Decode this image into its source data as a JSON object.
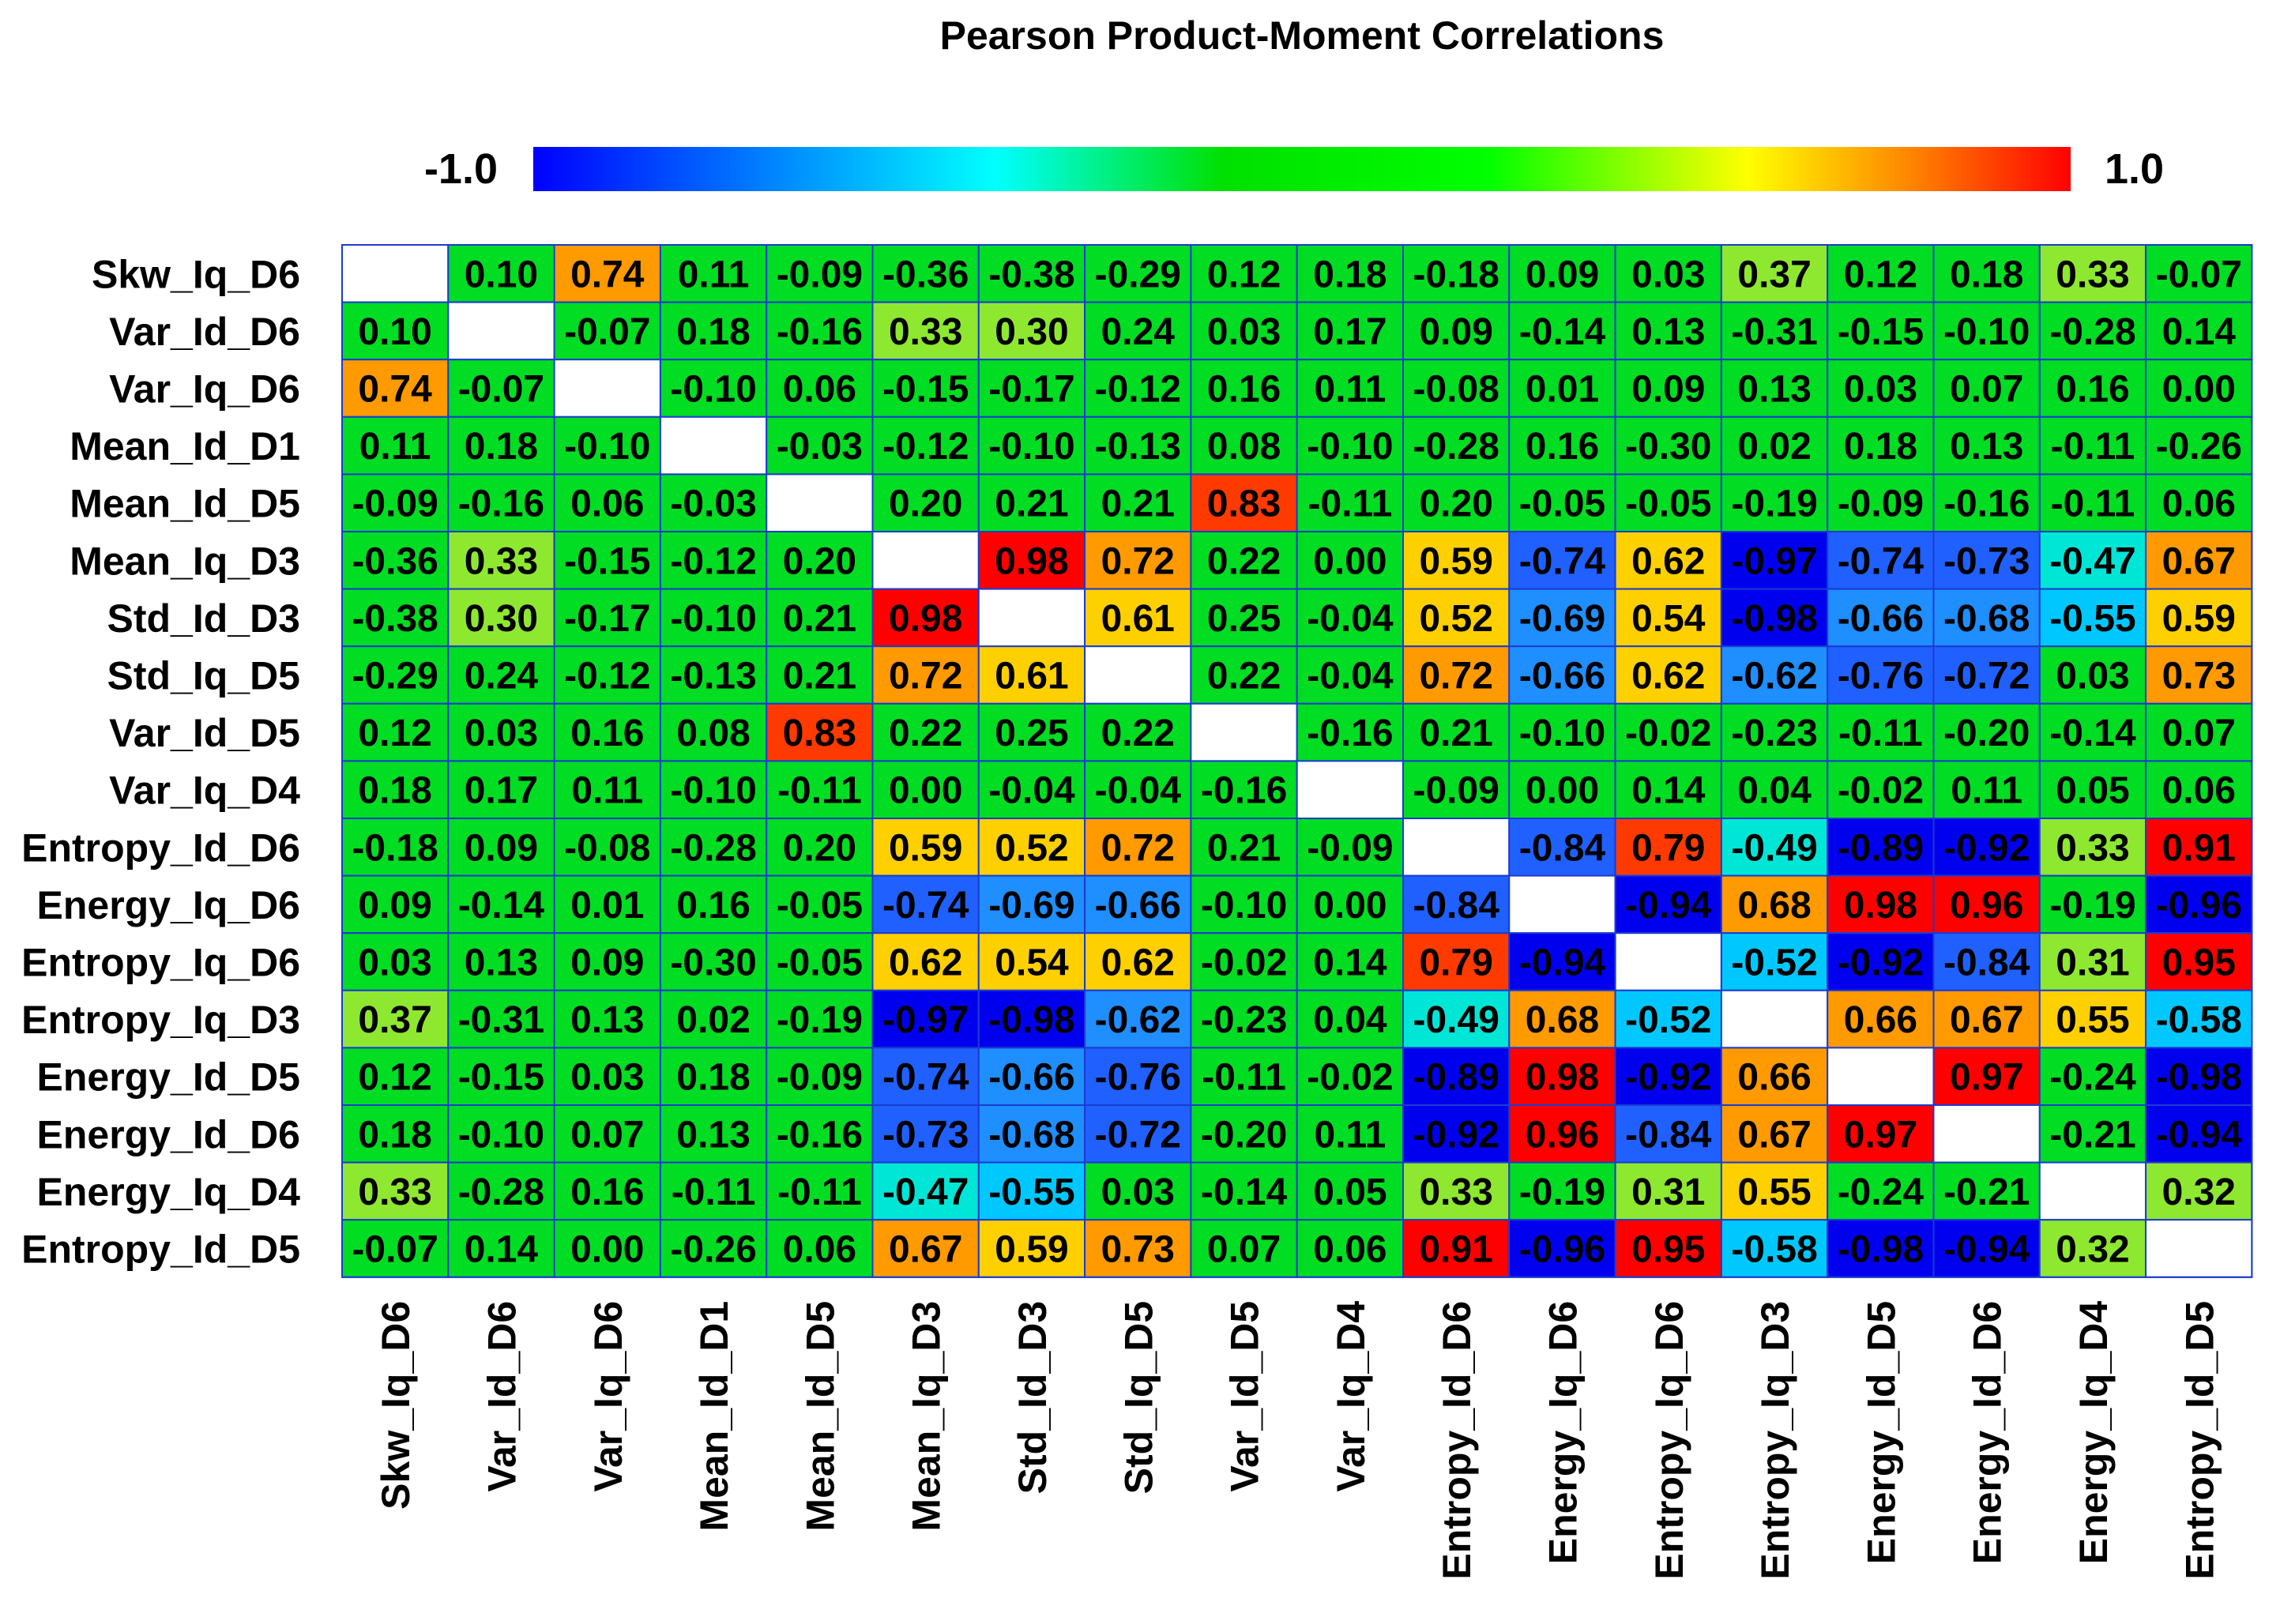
{
  "chart_data": {
    "type": "heatmap",
    "title": "Pearson Product-Moment Correlations",
    "colorbar": {
      "min_label": "-1.0",
      "max_label": "1.0",
      "range": [
        -1,
        1
      ],
      "colors": [
        "#0000ff",
        "#00ffff",
        "#00e000",
        "#00ff00",
        "#ffff00",
        "#ff8000",
        "#ff0000"
      ]
    },
    "rows": [
      "Skw_Iq_D6",
      "Var_Id_D6",
      "Var_Iq_D6",
      "Mean_Id_D1",
      "Mean_Id_D5",
      "Mean_Iq_D3",
      "Std_Id_D3",
      "Std_Iq_D5",
      "Var_Id_D5",
      "Var_Iq_D4",
      "Entropy_Id_D6",
      "Energy_Iq_D6",
      "Entropy_Iq_D6",
      "Entropy_Iq_D3",
      "Energy_Id_D5",
      "Energy_Id_D6",
      "Energy_Iq_D4",
      "Entropy_Id_D5"
    ],
    "columns": [
      "Skw_Iq_D6",
      "Var_Id_D6",
      "Var_Iq_D6",
      "Mean_Id_D1",
      "Mean_Id_D5",
      "Mean_Iq_D3",
      "Std_Id_D3",
      "Std_Iq_D5",
      "Var_Id_D5",
      "Var_Iq_D4",
      "Entropy_Id_D6",
      "Energy_Iq_D6",
      "Entropy_Iq_D6",
      "Entropy_Iq_D3",
      "Energy_Id_D5",
      "Energy_Id_D6",
      "Energy_Iq_D4",
      "Entropy_Id_D5"
    ],
    "values": [
      [
        null,
        "0.10",
        "0.74",
        "0.11",
        "-0.09",
        "-0.36",
        "-0.38",
        "-0.29",
        "0.12",
        "0.18",
        "-0.18",
        "0.09",
        "0.03",
        "0.37",
        "0.12",
        "0.18",
        "0.33",
        "-0.07"
      ],
      [
        "0.10",
        null,
        "-0.07",
        "0.18",
        "-0.16",
        "0.33",
        "0.30",
        "0.24",
        "0.03",
        "0.17",
        "0.09",
        "-0.14",
        "0.13",
        "-0.31",
        "-0.15",
        "-0.10",
        "-0.28",
        "0.14"
      ],
      [
        "0.74",
        "-0.07",
        null,
        "-0.10",
        "0.06",
        "-0.15",
        "-0.17",
        "-0.12",
        "0.16",
        "0.11",
        "-0.08",
        "0.01",
        "0.09",
        "0.13",
        "0.03",
        "0.07",
        "0.16",
        "0.00"
      ],
      [
        "0.11",
        "0.18",
        "-0.10",
        null,
        "-0.03",
        "-0.12",
        "-0.10",
        "-0.13",
        "0.08",
        "-0.10",
        "-0.28",
        "0.16",
        "-0.30",
        "0.02",
        "0.18",
        "0.13",
        "-0.11",
        "-0.26"
      ],
      [
        "-0.09",
        "-0.16",
        "0.06",
        "-0.03",
        null,
        "0.20",
        "0.21",
        "0.21",
        "0.83",
        "-0.11",
        "0.20",
        "-0.05",
        "-0.05",
        "-0.19",
        "-0.09",
        "-0.16",
        "-0.11",
        "0.06"
      ],
      [
        "-0.36",
        "0.33",
        "-0.15",
        "-0.12",
        "0.20",
        null,
        "0.98",
        "0.72",
        "0.22",
        "0.00",
        "0.59",
        "-0.74",
        "0.62",
        "-0.97",
        "-0.74",
        "-0.73",
        "-0.47",
        "0.67"
      ],
      [
        "-0.38",
        "0.30",
        "-0.17",
        "-0.10",
        "0.21",
        "0.98",
        null,
        "0.61",
        "0.25",
        "-0.04",
        "0.52",
        "-0.69",
        "0.54",
        "-0.98",
        "-0.66",
        "-0.68",
        "-0.55",
        "0.59"
      ],
      [
        "-0.29",
        "0.24",
        "-0.12",
        "-0.13",
        "0.21",
        "0.72",
        "0.61",
        null,
        "0.22",
        "-0.04",
        "0.72",
        "-0.66",
        "0.62",
        "-0.62",
        "-0.76",
        "-0.72",
        "0.03",
        "0.73"
      ],
      [
        "0.12",
        "0.03",
        "0.16",
        "0.08",
        "0.83",
        "0.22",
        "0.25",
        "0.22",
        null,
        "-0.16",
        "0.21",
        "-0.10",
        "-0.02",
        "-0.23",
        "-0.11",
        "-0.20",
        "-0.14",
        "0.07"
      ],
      [
        "0.18",
        "0.17",
        "0.11",
        "-0.10",
        "-0.11",
        "0.00",
        "-0.04",
        "-0.04",
        "-0.16",
        null,
        "-0.09",
        "0.00",
        "0.14",
        "0.04",
        "-0.02",
        "0.11",
        "0.05",
        "0.06"
      ],
      [
        "-0.18",
        "0.09",
        "-0.08",
        "-0.28",
        "0.20",
        "0.59",
        "0.52",
        "0.72",
        "0.21",
        "-0.09",
        null,
        "-0.84",
        "0.79",
        "-0.49",
        "-0.89",
        "-0.92",
        "0.33",
        "0.91"
      ],
      [
        "0.09",
        "-0.14",
        "0.01",
        "0.16",
        "-0.05",
        "-0.74",
        "-0.69",
        "-0.66",
        "-0.10",
        "0.00",
        "-0.84",
        null,
        "-0.94",
        "0.68",
        "0.98",
        "0.96",
        "-0.19",
        "-0.96"
      ],
      [
        "0.03",
        "0.13",
        "0.09",
        "-0.30",
        "-0.05",
        "0.62",
        "0.54",
        "0.62",
        "-0.02",
        "0.14",
        "0.79",
        "-0.94",
        null,
        "-0.52",
        "-0.92",
        "-0.84",
        "0.31",
        "0.95"
      ],
      [
        "0.37",
        "-0.31",
        "0.13",
        "0.02",
        "-0.19",
        "-0.97",
        "-0.98",
        "-0.62",
        "-0.23",
        "0.04",
        "-0.49",
        "0.68",
        "-0.52",
        null,
        "0.66",
        "0.67",
        "0.55",
        "-0.58"
      ],
      [
        "0.12",
        "-0.15",
        "0.03",
        "0.18",
        "-0.09",
        "-0.74",
        "-0.66",
        "-0.76",
        "-0.11",
        "-0.02",
        "-0.89",
        "0.98",
        "-0.92",
        "0.66",
        null,
        "0.97",
        "-0.24",
        "-0.98"
      ],
      [
        "0.18",
        "-0.10",
        "0.07",
        "0.13",
        "-0.16",
        "-0.73",
        "-0.68",
        "-0.72",
        "-0.20",
        "0.11",
        "-0.92",
        "0.96",
        "-0.84",
        "0.67",
        "0.97",
        null,
        "-0.21",
        "-0.94"
      ],
      [
        "0.33",
        "-0.28",
        "0.16",
        "-0.11",
        "-0.11",
        "-0.47",
        "-0.55",
        "0.03",
        "-0.14",
        "0.05",
        "0.33",
        "-0.19",
        "0.31",
        "0.55",
        "-0.24",
        "-0.21",
        null,
        "0.32"
      ],
      [
        "-0.07",
        "0.14",
        "0.00",
        "-0.26",
        "0.06",
        "0.67",
        "0.59",
        "0.73",
        "0.07",
        "0.06",
        "0.91",
        "-0.96",
        "0.95",
        "-0.58",
        "-0.98",
        "-0.94",
        "0.32",
        null
      ]
    ]
  }
}
